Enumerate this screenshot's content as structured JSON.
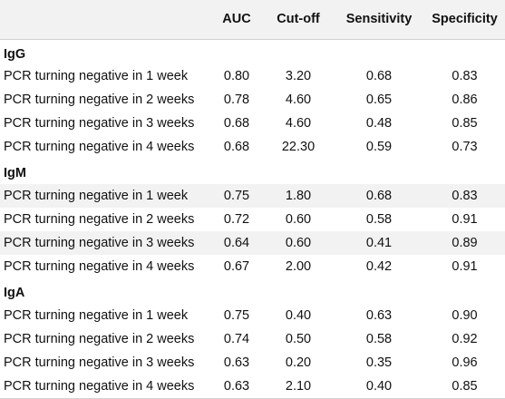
{
  "table": {
    "columns": [
      "",
      "AUC",
      "Cut-off",
      "Sensitivity",
      "Specificity"
    ],
    "groups": [
      {
        "name": "IgG",
        "rows": [
          {
            "label": "PCR turning negative in 1 week",
            "auc": "0.80",
            "cutoff": "3.20",
            "sensitivity": "0.68",
            "specificity": "0.83"
          },
          {
            "label": "PCR turning negative in 2 weeks",
            "auc": "0.78",
            "cutoff": "4.60",
            "sensitivity": "0.65",
            "specificity": "0.86"
          },
          {
            "label": "PCR turning negative in 3 weeks",
            "auc": "0.68",
            "cutoff": "4.60",
            "sensitivity": "0.48",
            "specificity": "0.85"
          },
          {
            "label": "PCR turning negative in 4 weeks",
            "auc": "0.68",
            "cutoff": "22.30",
            "sensitivity": "0.59",
            "specificity": "0.73"
          }
        ]
      },
      {
        "name": "IgM",
        "rows": [
          {
            "label": "PCR turning negative in 1 week",
            "auc": "0.75",
            "cutoff": "1.80",
            "sensitivity": "0.68",
            "specificity": "0.83"
          },
          {
            "label": "PCR turning negative in 2 weeks",
            "auc": "0.72",
            "cutoff": "0.60",
            "sensitivity": "0.58",
            "specificity": "0.91"
          },
          {
            "label": "PCR turning negative in 3 weeks",
            "auc": "0.64",
            "cutoff": "0.60",
            "sensitivity": "0.41",
            "specificity": "0.89"
          },
          {
            "label": "PCR turning negative in 4 weeks",
            "auc": "0.67",
            "cutoff": "2.00",
            "sensitivity": "0.42",
            "specificity": "0.91"
          }
        ]
      },
      {
        "name": "IgA",
        "rows": [
          {
            "label": "PCR turning negative in 1 week",
            "auc": "0.75",
            "cutoff": "0.40",
            "sensitivity": "0.63",
            "specificity": "0.90"
          },
          {
            "label": "PCR turning negative in 2 weeks",
            "auc": "0.74",
            "cutoff": "0.50",
            "sensitivity": "0.58",
            "specificity": "0.92"
          },
          {
            "label": "PCR turning negative in 3 weeks",
            "auc": "0.63",
            "cutoff": "0.20",
            "sensitivity": "0.35",
            "specificity": "0.96"
          },
          {
            "label": "PCR turning negative in 4 weeks",
            "auc": "0.63",
            "cutoff": "2.10",
            "sensitivity": "0.40",
            "specificity": "0.85"
          }
        ]
      }
    ]
  },
  "colors": {
    "shade": "#f2f2f2",
    "rule": "#d2d2d2",
    "text": "#111111"
  }
}
